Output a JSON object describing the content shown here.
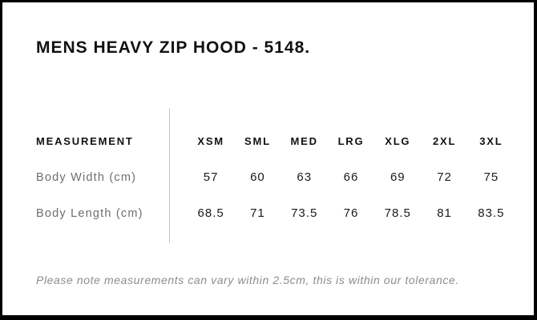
{
  "title": "MENS HEAVY ZIP HOOD - 5148.",
  "table": {
    "measurement_header": "MEASUREMENT",
    "size_headers": [
      "XSM",
      "SML",
      "MED",
      "LRG",
      "XLG",
      "2XL",
      "3XL"
    ],
    "rows": [
      {
        "label": "Body Width (cm)",
        "values": [
          "57",
          "60",
          "63",
          "66",
          "69",
          "72",
          "75"
        ]
      },
      {
        "label": "Body Length (cm)",
        "values": [
          "68.5",
          "71",
          "73.5",
          "76",
          "78.5",
          "81",
          "83.5"
        ]
      }
    ]
  },
  "note": "Please note measurements can vary within 2.5cm, this is within our tolerance.",
  "colors": {
    "frame": "#000000",
    "title_text": "#111111",
    "header_text": "#111111",
    "value_text": "#1a1a1a",
    "label_gray": "#6e6e6e",
    "note_gray": "#8c8c8c",
    "divider": "#c5c5c5",
    "background": "#ffffff"
  },
  "chart_data": {
    "type": "table",
    "title": "MENS HEAVY ZIP HOOD - 5148.",
    "columns": [
      "MEASUREMENT",
      "XSM",
      "SML",
      "MED",
      "LRG",
      "XLG",
      "2XL",
      "3XL"
    ],
    "rows": [
      [
        "Body Width (cm)",
        57,
        60,
        63,
        66,
        69,
        72,
        75
      ],
      [
        "Body Length (cm)",
        68.5,
        71,
        73.5,
        76,
        78.5,
        81,
        83.5
      ]
    ],
    "note": "Please note measurements can vary within 2.5cm, this is within our tolerance."
  }
}
